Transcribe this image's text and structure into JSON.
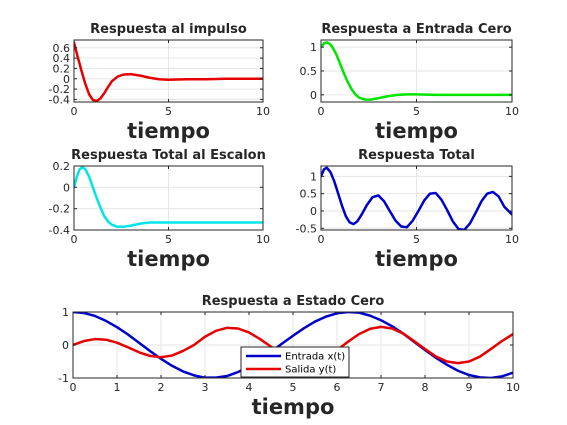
{
  "chart_data": [
    {
      "id": "impulse",
      "type": "line",
      "title": "Respuesta al impulso",
      "xlabel": "tiempo",
      "ylabel": "",
      "xlim": [
        0,
        10
      ],
      "ylim": [
        -0.45,
        0.75
      ],
      "xticks": [
        0,
        5,
        10
      ],
      "yticks": [
        -0.4,
        -0.2,
        0,
        0.2,
        0.4,
        0.6
      ],
      "ytick_labels": [
        "-0.4",
        "-0.2",
        "0",
        "0.2",
        "0.4",
        "0.6"
      ],
      "grid": true,
      "series": [
        {
          "color": "#e60000",
          "x": [
            0,
            0.2,
            0.4,
            0.6,
            0.8,
            1,
            1.2,
            1.4,
            1.6,
            1.8,
            2,
            2.3,
            2.6,
            3,
            3.5,
            4,
            4.5,
            5,
            6,
            7,
            8,
            9,
            10
          ],
          "y": [
            0.7,
            0.42,
            0.15,
            -0.1,
            -0.3,
            -0.41,
            -0.43,
            -0.38,
            -0.28,
            -0.16,
            -0.05,
            0.04,
            0.08,
            0.09,
            0.06,
            0.02,
            -0.01,
            -0.02,
            -0.01,
            -0.01,
            0,
            0,
            0
          ]
        }
      ]
    },
    {
      "id": "zero-input",
      "type": "line",
      "title": "Respuesta a Entrada Cero",
      "xlabel": "tiempo",
      "ylabel": "",
      "xlim": [
        0,
        10
      ],
      "ylim": [
        -0.15,
        1.15
      ],
      "xticks": [
        0,
        5,
        10
      ],
      "yticks": [
        0,
        0.5,
        1
      ],
      "ytick_labels": [
        "0",
        "0.5",
        "1"
      ],
      "grid": true,
      "series": [
        {
          "color": "#00e600",
          "x": [
            0,
            0.15,
            0.3,
            0.45,
            0.6,
            0.8,
            1,
            1.2,
            1.4,
            1.6,
            1.8,
            2,
            2.3,
            2.6,
            3,
            3.5,
            4,
            4.5,
            5,
            6,
            7,
            8,
            9,
            10
          ],
          "y": [
            1.0,
            1.08,
            1.1,
            1.07,
            1.0,
            0.85,
            0.65,
            0.45,
            0.27,
            0.12,
            0.01,
            -0.06,
            -0.1,
            -0.1,
            -0.07,
            -0.03,
            0,
            0.01,
            0.01,
            0,
            0,
            0,
            0,
            0
          ]
        }
      ]
    },
    {
      "id": "total-step",
      "type": "line",
      "title": "Respuesta Total al Escalon",
      "xlabel": "tiempo",
      "ylabel": "",
      "xlim": [
        0,
        10
      ],
      "ylim": [
        -0.4,
        0.2
      ],
      "xticks": [
        0,
        5,
        10
      ],
      "yticks": [
        -0.4,
        -0.2,
        0,
        0.2
      ],
      "ytick_labels": [
        "-0.4",
        "-0.2",
        "0",
        "0.2"
      ],
      "grid": true,
      "series": [
        {
          "color": "#00e6e6",
          "x": [
            0,
            0.15,
            0.3,
            0.45,
            0.6,
            0.8,
            1,
            1.2,
            1.4,
            1.6,
            1.8,
            2,
            2.3,
            2.6,
            3,
            3.5,
            4,
            4.5,
            5,
            6,
            7,
            8,
            9,
            10
          ],
          "y": [
            0.0,
            0.1,
            0.17,
            0.19,
            0.17,
            0.1,
            0.0,
            -0.1,
            -0.19,
            -0.27,
            -0.32,
            -0.35,
            -0.37,
            -0.37,
            -0.36,
            -0.34,
            -0.33,
            -0.33,
            -0.33,
            -0.33,
            -0.33,
            -0.33,
            -0.33,
            -0.33
          ]
        }
      ]
    },
    {
      "id": "total",
      "type": "line",
      "title": "Respuesta Total",
      "xlabel": "tiempo",
      "ylabel": "",
      "xlim": [
        0,
        10
      ],
      "ylim": [
        -0.55,
        1.3
      ],
      "xticks": [
        0,
        5,
        10
      ],
      "yticks": [
        -0.5,
        0,
        0.5,
        1
      ],
      "ytick_labels": [
        "-0.5",
        "0",
        "0.5",
        "1"
      ],
      "grid": true,
      "series": [
        {
          "color": "#0000cc",
          "x": [
            0,
            0.15,
            0.3,
            0.5,
            0.7,
            0.9,
            1.1,
            1.3,
            1.5,
            1.7,
            1.9,
            2.1,
            2.4,
            2.7,
            3.0,
            3.3,
            3.6,
            3.9,
            4.2,
            4.5,
            4.8,
            5.1,
            5.4,
            5.7,
            6.0,
            6.3,
            6.6,
            6.9,
            7.2,
            7.5,
            7.8,
            8.1,
            8.4,
            8.7,
            9.0,
            9.3,
            9.6,
            10
          ],
          "y": [
            1.0,
            1.2,
            1.25,
            1.12,
            0.85,
            0.5,
            0.15,
            -0.15,
            -0.33,
            -0.38,
            -0.3,
            -0.13,
            0.17,
            0.4,
            0.45,
            0.28,
            0.0,
            -0.28,
            -0.45,
            -0.47,
            -0.28,
            0.0,
            0.3,
            0.5,
            0.52,
            0.33,
            0.03,
            -0.3,
            -0.52,
            -0.55,
            -0.36,
            -0.05,
            0.28,
            0.5,
            0.55,
            0.42,
            0.12,
            -0.1
          ]
        }
      ]
    },
    {
      "id": "zero-state",
      "type": "line",
      "title": "Respuesta a Estado Cero",
      "xlabel": "tiempo",
      "ylabel": "",
      "xlim": [
        0,
        10
      ],
      "ylim": [
        -1,
        1
      ],
      "xticks": [
        0,
        1,
        2,
        3,
        4,
        5,
        6,
        7,
        8,
        9,
        10
      ],
      "yticks": [
        -1,
        0,
        1
      ],
      "ytick_labels": [
        "-1",
        "0",
        "1"
      ],
      "grid": true,
      "legend_position": "bottom-center",
      "series": [
        {
          "name": "Entrada x(t)",
          "color": "#0000cc",
          "x": [
            0,
            0.25,
            0.5,
            0.75,
            1,
            1.25,
            1.5,
            1.75,
            2,
            2.25,
            2.5,
            2.75,
            3,
            3.25,
            3.5,
            3.75,
            4,
            4.25,
            4.5,
            4.75,
            5,
            5.25,
            5.5,
            5.75,
            6,
            6.25,
            6.5,
            6.75,
            7,
            7.25,
            7.5,
            7.75,
            8,
            8.25,
            8.5,
            8.75,
            9,
            9.25,
            9.5,
            9.75,
            10
          ],
          "y": [
            1.0,
            0.97,
            0.88,
            0.73,
            0.54,
            0.32,
            0.07,
            -0.18,
            -0.42,
            -0.63,
            -0.8,
            -0.92,
            -0.99,
            -0.99,
            -0.94,
            -0.82,
            -0.65,
            -0.45,
            -0.21,
            0.04,
            0.28,
            0.51,
            0.71,
            0.86,
            0.96,
            1.0,
            0.98,
            0.89,
            0.75,
            0.57,
            0.35,
            0.1,
            -0.15,
            -0.39,
            -0.6,
            -0.78,
            -0.91,
            -0.98,
            -1.0,
            -0.95,
            -0.84
          ]
        },
        {
          "name": "Salida y(t)",
          "color": "#e60000",
          "x": [
            0,
            0.25,
            0.5,
            0.75,
            1,
            1.25,
            1.5,
            1.75,
            2,
            2.25,
            2.5,
            2.75,
            3,
            3.25,
            3.5,
            3.75,
            4,
            4.25,
            4.5,
            4.75,
            5,
            5.25,
            5.5,
            5.75,
            6,
            6.25,
            6.5,
            6.75,
            7,
            7.25,
            7.5,
            7.75,
            8,
            8.25,
            8.5,
            8.75,
            9,
            9.25,
            9.5,
            9.75,
            10
          ],
          "y": [
            0.0,
            0.12,
            0.18,
            0.16,
            0.07,
            -0.07,
            -0.22,
            -0.33,
            -0.37,
            -0.32,
            -0.18,
            0.0,
            0.25,
            0.43,
            0.52,
            0.5,
            0.38,
            0.18,
            -0.05,
            -0.28,
            -0.45,
            -0.53,
            -0.49,
            -0.35,
            -0.15,
            0.1,
            0.33,
            0.49,
            0.55,
            0.5,
            0.35,
            0.12,
            -0.12,
            -0.35,
            -0.5,
            -0.55,
            -0.5,
            -0.35,
            -0.12,
            0.12,
            0.33
          ]
        }
      ]
    }
  ]
}
